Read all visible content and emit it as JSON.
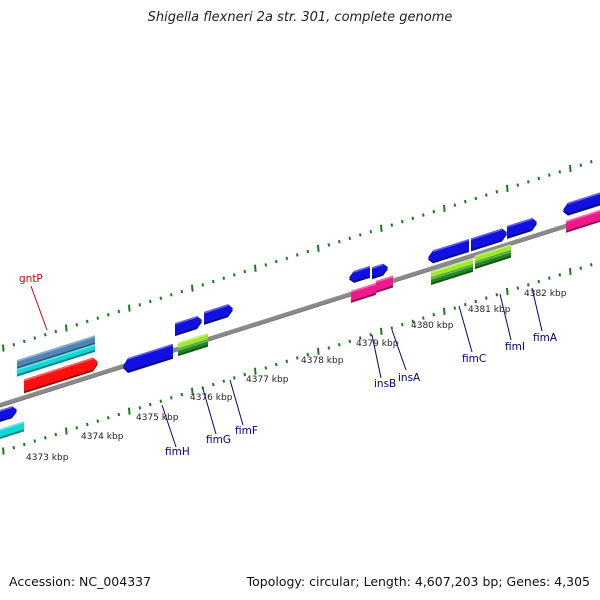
{
  "title": "Shigella flexneri 2a str. 301, complete genome",
  "footer": {
    "accession": "Accession: NC_004337",
    "summary": "Topology: circular; Length: 4,607,203 bp; Genes: 4,305"
  },
  "colors": {
    "backbone": "#8a8a8a",
    "ticks": "#1a7a1a",
    "label_red": "#cc0000",
    "label_navy": "#000080",
    "cds_blue": "#1010e0",
    "gene_cyan": "#10d8d8",
    "steel_blue": "#4f86b6",
    "red_feature": "#ff1010",
    "magenta": "#ee1a8c",
    "lime": "#9be830",
    "green": "#1e8a1e"
  },
  "ticks": [
    {
      "label": "4373 kbp"
    },
    {
      "label": "4374 kbp"
    },
    {
      "label": "4375 kbp"
    },
    {
      "label": "4376 kbp"
    },
    {
      "label": "4377 kbp"
    },
    {
      "label": "4378 kbp"
    },
    {
      "label": "4379 kbp"
    },
    {
      "label": "4380 kbp"
    },
    {
      "label": "4381 kbp"
    },
    {
      "label": "4382 kbp"
    }
  ],
  "genes": [
    {
      "name": "gntP",
      "color": "label_red"
    },
    {
      "name": "fimH",
      "color": "label_navy"
    },
    {
      "name": "fimG",
      "color": "label_navy"
    },
    {
      "name": "fimF",
      "color": "label_navy"
    },
    {
      "name": "insB",
      "color": "label_navy"
    },
    {
      "name": "insA",
      "color": "label_navy"
    },
    {
      "name": "fimC",
      "color": "label_navy"
    },
    {
      "name": "fimI",
      "color": "label_navy"
    },
    {
      "name": "fimA",
      "color": "label_navy"
    }
  ]
}
